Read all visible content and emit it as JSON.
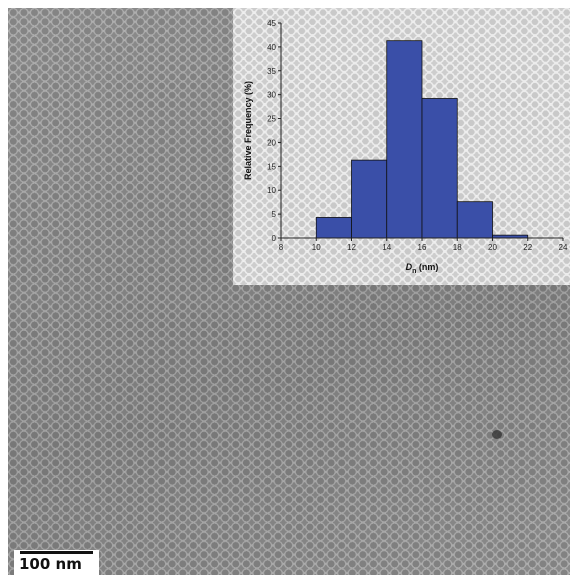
{
  "scale_bar": {
    "label": "100 nm"
  },
  "chart_data": {
    "type": "bar",
    "xlabel_main": "D",
    "xlabel_sub": "n",
    "xlabel_unit": " (nm)",
    "ylabel": "Relative Frequency (%)",
    "xlim": [
      8,
      24
    ],
    "ylim": [
      0,
      45
    ],
    "x_ticks": [
      8,
      10,
      12,
      14,
      16,
      18,
      20,
      22,
      24
    ],
    "y_ticks": [
      0,
      5,
      10,
      15,
      20,
      25,
      30,
      35,
      40,
      45
    ],
    "bins": [
      {
        "x0": 10,
        "x1": 12,
        "value": 4.3
      },
      {
        "x0": 12,
        "x1": 14,
        "value": 16.3
      },
      {
        "x0": 14,
        "x1": 16,
        "value": 41.3
      },
      {
        "x0": 16,
        "x1": 18,
        "value": 29.2
      },
      {
        "x0": 18,
        "x1": 20,
        "value": 7.6
      },
      {
        "x0": 20,
        "x1": 22,
        "value": 0.6
      }
    ],
    "bar_color": "#3a4fa8",
    "bar_edge_color": "#111111"
  }
}
